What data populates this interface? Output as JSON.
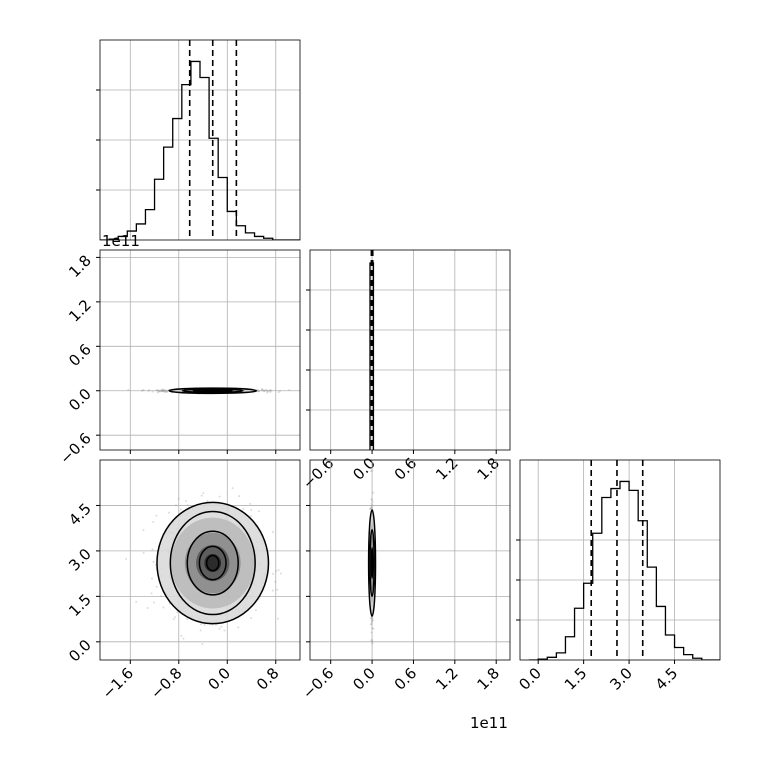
{
  "colors": {
    "line": "#000000",
    "grid": "#b0b0b0",
    "scatter": "#9a9a9a"
  },
  "chart_data": [
    {
      "type": "histogram",
      "panel": "hist-1",
      "xlim": [
        -2.1,
        1.2
      ],
      "grid": true,
      "quantile_lines": [
        -0.62,
        -0.24,
        0.15
      ],
      "bin_edges": [
        -2.1,
        -1.95,
        -1.8,
        -1.65,
        -1.5,
        -1.35,
        -1.2,
        -1.05,
        -0.9,
        -0.75,
        -0.6,
        -0.45,
        -0.3,
        -0.15,
        0.0,
        0.15,
        0.3,
        0.45,
        0.6,
        0.75,
        0.9,
        1.05,
        1.2
      ],
      "counts": [
        0.0,
        0.005,
        0.02,
        0.05,
        0.09,
        0.17,
        0.34,
        0.52,
        0.68,
        0.87,
        1.0,
        0.91,
        0.57,
        0.35,
        0.16,
        0.08,
        0.04,
        0.02,
        0.01,
        0.0,
        0.0,
        0.0
      ],
      "ymax": 1.12,
      "yticks_frac": [
        0.25,
        0.5,
        0.75
      ],
      "offset_label": "1e11"
    },
    {
      "type": "histogram",
      "panel": "hist-2",
      "xlim": [
        -0.9,
        2.0
      ],
      "xticks": [
        -0.6,
        0.0,
        0.6,
        1.2,
        1.8
      ],
      "xticklabels": [
        "−0.6",
        "0.0",
        "0.6",
        "1.2",
        "1.8"
      ],
      "grid": true,
      "quantile_lines": [
        -0.01,
        0.0,
        0.01
      ],
      "bin_edges": [
        -0.1,
        0.1
      ],
      "counts": [
        1.0
      ],
      "ymax": 1.07,
      "yticks_frac": [
        0.2,
        0.4,
        0.6,
        0.8
      ],
      "offset_label": "1e11"
    },
    {
      "type": "histogram",
      "panel": "hist-3",
      "xlim": [
        -0.6,
        6.0
      ],
      "xticks": [
        0.0,
        1.5,
        3.0,
        4.5
      ],
      "xticklabels": [
        "0.0",
        "1.5",
        "3.0",
        "4.5"
      ],
      "grid": true,
      "quantile_lines": [
        1.75,
        2.6,
        3.45
      ],
      "bin_edges": [
        -0.3,
        0.0,
        0.3,
        0.6,
        0.9,
        1.2,
        1.5,
        1.8,
        2.1,
        2.4,
        2.7,
        3.0,
        3.3,
        3.6,
        3.9,
        4.2,
        4.5,
        4.8,
        5.1,
        5.4,
        5.7,
        6.0
      ],
      "counts": [
        0.0,
        0.005,
        0.015,
        0.04,
        0.13,
        0.29,
        0.43,
        0.71,
        0.91,
        0.96,
        1.0,
        0.95,
        0.78,
        0.52,
        0.3,
        0.14,
        0.07,
        0.03,
        0.01,
        0.0,
        0.0
      ],
      "ymax": 1.12,
      "yticks_frac": [
        0.2,
        0.4,
        0.6
      ],
      "offset_label": ""
    },
    {
      "type": "scatter-contour",
      "panel": "hist2d-x1-x2",
      "xlim": [
        -2.1,
        1.2
      ],
      "ylim": [
        -0.8,
        1.9
      ],
      "yticks": [
        -0.6,
        0.0,
        0.6,
        1.2,
        1.8
      ],
      "yticklabels": [
        "−0.6",
        "0.0",
        "0.6",
        "1.2",
        "1.8"
      ],
      "grid": true,
      "center": [
        -0.24,
        0.0
      ],
      "spread": [
        0.4,
        0.01
      ],
      "contours": [
        [
          0.15,
          0.005
        ],
        [
          0.32,
          0.012
        ],
        [
          0.5,
          0.022
        ],
        [
          0.72,
          0.035
        ]
      ],
      "offset_label": "1e11"
    },
    {
      "type": "scatter-contour",
      "panel": "hist2d-x1-x3",
      "xlim": [
        -2.1,
        1.2
      ],
      "ylim": [
        -0.6,
        6.0
      ],
      "xticks": [
        -1.6,
        -0.8,
        0.0,
        0.8
      ],
      "xticklabels": [
        "−1.6",
        "−0.8",
        "0.0",
        "0.8"
      ],
      "yticks": [
        0.0,
        1.5,
        3.0,
        4.5
      ],
      "yticklabels": [
        "0.0",
        "1.5",
        "3.0",
        "4.5"
      ],
      "grid": true,
      "center": [
        -0.24,
        2.6
      ],
      "spread": [
        0.38,
        0.85
      ],
      "contours": [
        [
          0.1,
          0.25
        ],
        [
          0.22,
          0.55
        ],
        [
          0.42,
          1.05
        ],
        [
          0.7,
          1.7
        ],
        [
          0.92,
          2.0
        ]
      ]
    },
    {
      "type": "scatter-contour",
      "panel": "hist2d-x2-x3",
      "xlim": [
        -0.9,
        2.0
      ],
      "ylim": [
        -0.6,
        6.0
      ],
      "xticks": [
        -0.6,
        0.0,
        0.6,
        1.2,
        1.8
      ],
      "xticklabels": [
        "−0.6",
        "0.0",
        "0.6",
        "1.2",
        "1.8"
      ],
      "grid": true,
      "center": [
        0.0,
        2.6
      ],
      "spread": [
        0.01,
        0.85
      ],
      "contours": [
        [
          0.01,
          0.5
        ],
        [
          0.03,
          1.1
        ],
        [
          0.05,
          1.75
        ]
      ],
      "offset_label": "1e11"
    }
  ]
}
